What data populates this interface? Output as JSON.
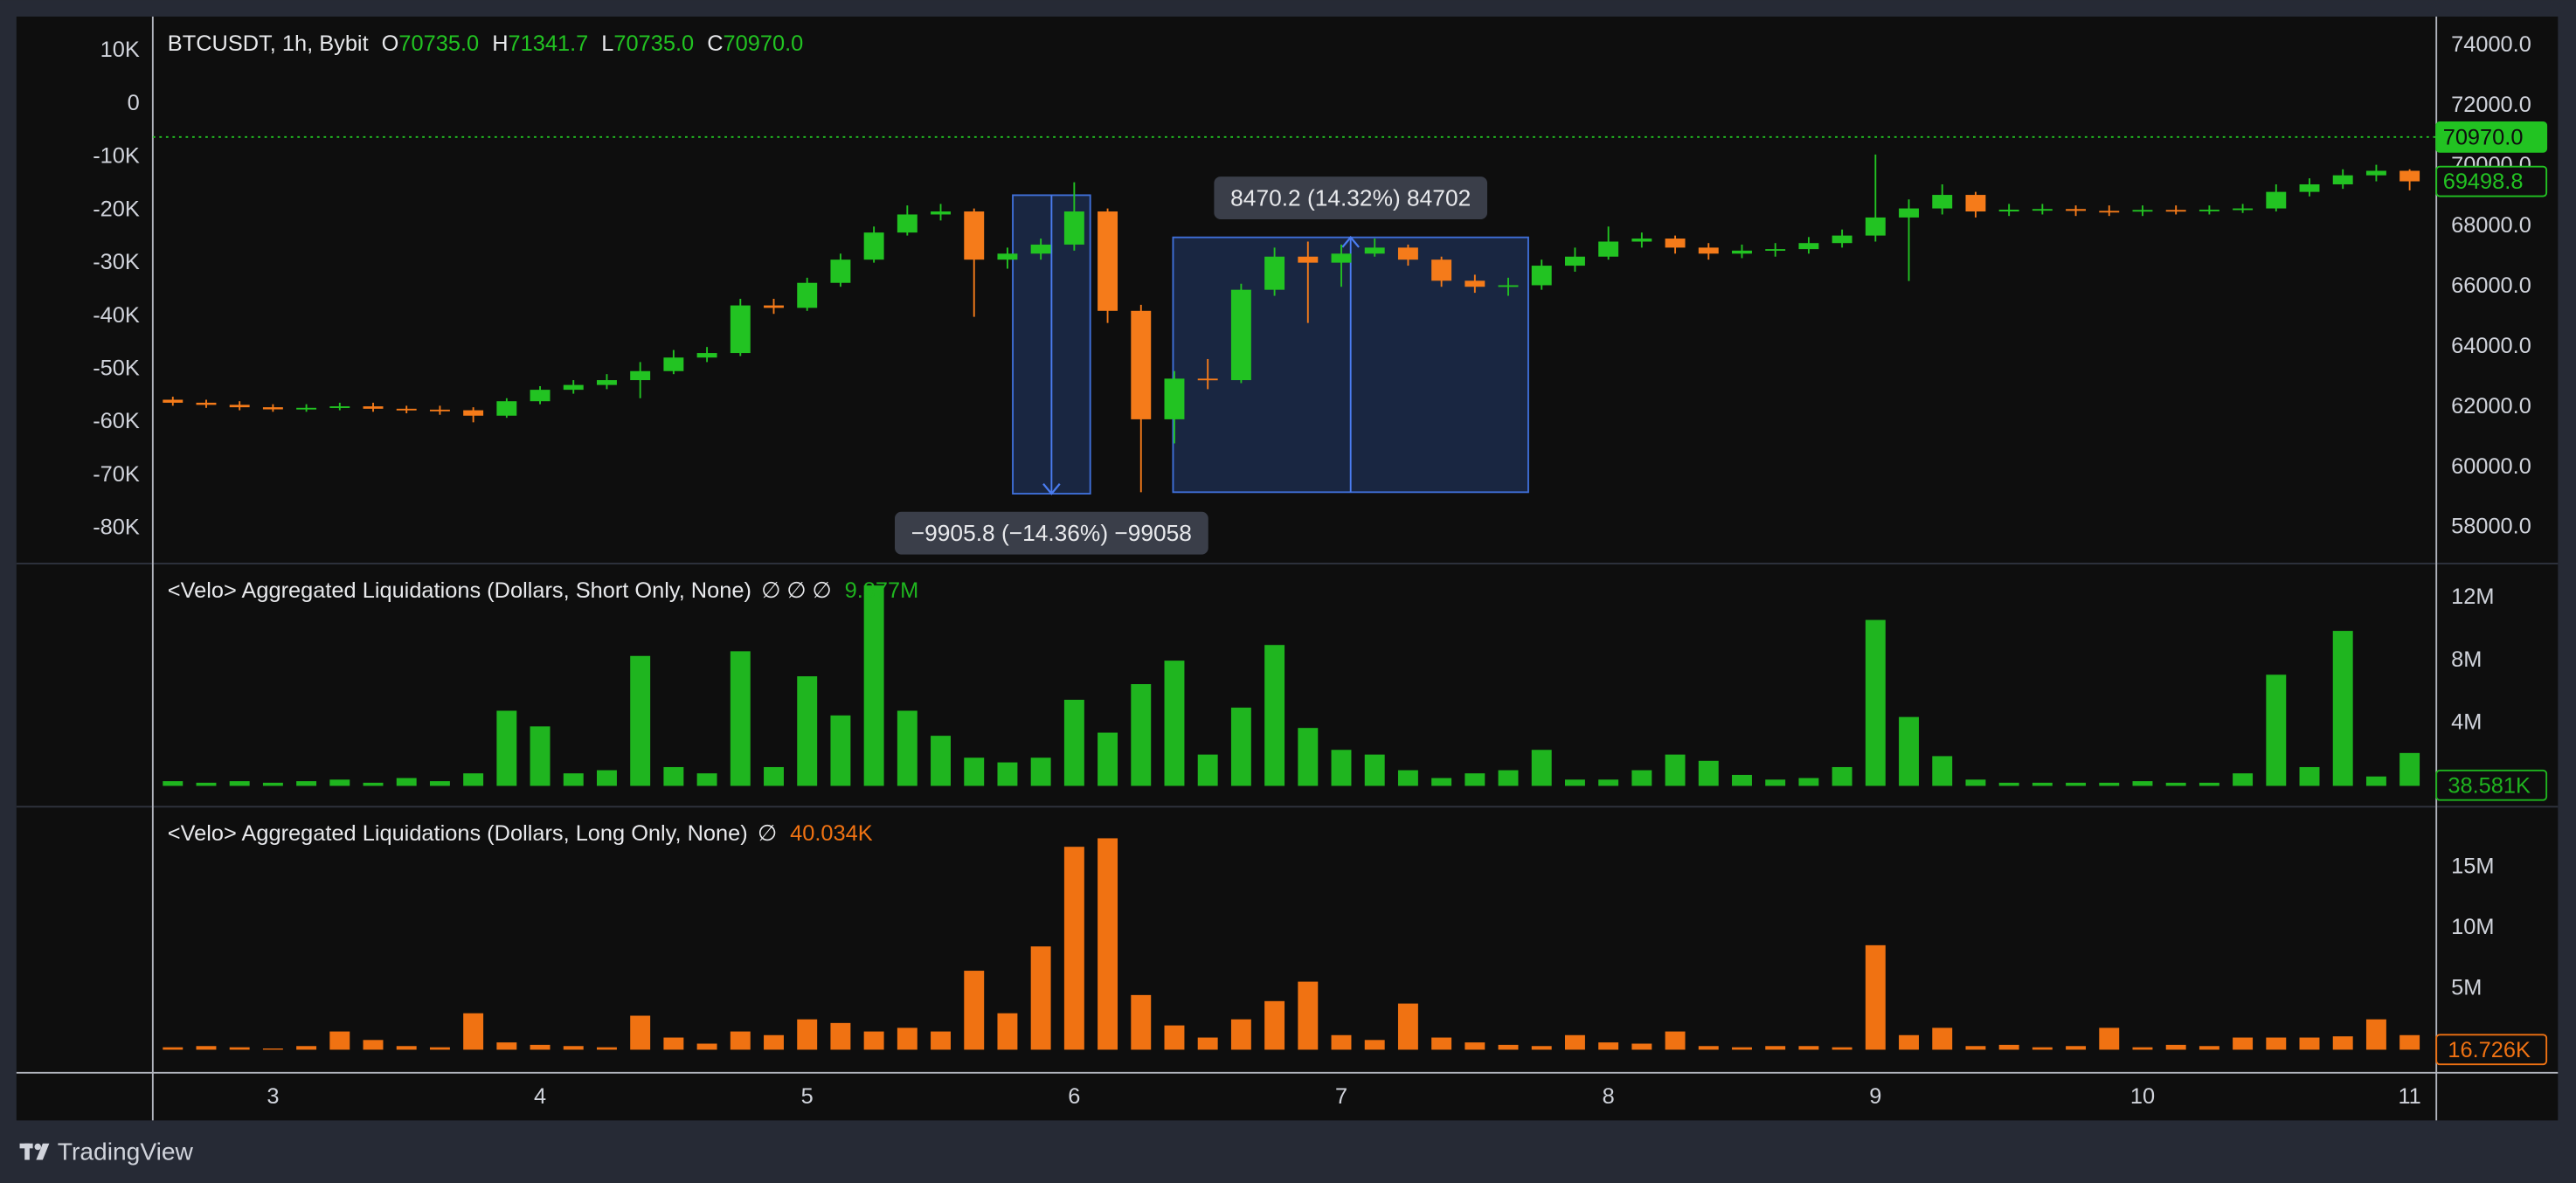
{
  "chart_data": [
    {
      "type": "candlestick",
      "title": "BTCUSDT, 1h, Bybit",
      "header_fields": [
        {
          "key": "O",
          "value": 70735,
          "label": "70735.0"
        },
        {
          "key": "H",
          "value": 71341.7,
          "label": "71341.7"
        },
        {
          "key": "L",
          "value": 70735,
          "label": "70735.0"
        },
        {
          "key": "C",
          "value": 70970,
          "label": "70970.0"
        }
      ],
      "up_color": "#22c322",
      "down_color": "#f57b1a",
      "xlim": [
        2.55,
        11.1
      ],
      "xticks": [
        3,
        4,
        5,
        6,
        7,
        8,
        9,
        10,
        11
      ],
      "ylim": [
        56810,
        74970
      ],
      "yticks": [
        {
          "value": 58000,
          "label": "58000.0"
        },
        {
          "value": 60000,
          "label": "60000.0"
        },
        {
          "value": 62000,
          "label": "62000.0"
        },
        {
          "value": 64000,
          "label": "64000.0"
        },
        {
          "value": 66000,
          "label": "66000.0"
        },
        {
          "value": 68000,
          "label": "68000.0"
        },
        {
          "value": 70000,
          "label": "70000.0"
        },
        {
          "value": 72000,
          "label": "72000.0"
        },
        {
          "value": 74000,
          "label": "74000.0"
        }
      ],
      "y2lim": [
        -86600,
        16500
      ],
      "y2ticks": [
        {
          "value": 10000,
          "label": "10K"
        },
        0,
        {
          "value": -10000,
          "label": "-10K"
        },
        {
          "value": -20000,
          "label": "-20K"
        },
        {
          "value": -30000,
          "label": "-30K"
        },
        {
          "value": -40000,
          "label": "-40K"
        },
        {
          "value": -50000,
          "label": "-50K"
        },
        {
          "value": -60000,
          "label": "-60K"
        },
        {
          "value": -70000,
          "label": "-70K"
        },
        {
          "value": -80000,
          "label": "-80K"
        }
      ],
      "x": [
        2.625,
        2.75,
        2.875,
        3.0,
        3.125,
        3.25,
        3.375,
        3.5,
        3.625,
        3.75,
        3.875,
        4.0,
        4.125,
        4.25,
        4.375,
        4.5,
        4.625,
        4.75,
        4.875,
        5.0,
        5.125,
        5.25,
        5.375,
        5.5,
        5.625,
        5.75,
        5.875,
        6.0,
        6.125,
        6.25,
        6.375,
        6.5,
        6.625,
        6.75,
        6.875,
        7.0,
        7.125,
        7.25,
        7.375,
        7.5,
        7.625,
        7.75,
        7.875,
        8.0,
        8.125,
        8.25,
        8.375,
        8.5,
        8.625,
        8.75,
        8.875,
        9.0,
        9.125,
        9.25,
        9.375,
        9.5,
        9.625,
        9.75,
        9.875,
        10.0,
        10.125,
        10.25,
        10.375,
        10.5,
        10.625,
        10.75,
        10.875,
        11.0
      ],
      "open": [
        62250,
        62150,
        62080,
        62000,
        61930,
        61980,
        62030,
        61950,
        61920,
        61900,
        61720,
        62200,
        62580,
        62740,
        62900,
        63200,
        63650,
        63800,
        65380,
        65300,
        66130,
        66900,
        67800,
        68400,
        68500,
        66900,
        67100,
        67400,
        68500,
        65200,
        61600,
        62950,
        62900,
        65900,
        67000,
        66800,
        67100,
        67300,
        66900,
        66200,
        66000,
        66050,
        66700,
        67000,
        67500,
        67600,
        67300,
        67100,
        67200,
        67250,
        67450,
        67700,
        68300,
        68600,
        69050,
        68500,
        68560,
        68580,
        68520,
        68500,
        68550,
        68530,
        68560,
        68600,
        69150,
        69400,
        69700,
        69850
      ],
      "high": [
        62350,
        62250,
        62200,
        62100,
        62100,
        62150,
        62150,
        62050,
        62050,
        62000,
        62300,
        62700,
        62900,
        63100,
        63500,
        63900,
        64000,
        65600,
        65600,
        66300,
        67100,
        68000,
        68700,
        68750,
        68600,
        67300,
        67600,
        69470,
        68600,
        65400,
        63200,
        63600,
        66100,
        67300,
        67500,
        67400,
        67600,
        67400,
        67000,
        66400,
        66300,
        66900,
        67300,
        68000,
        67800,
        67700,
        67450,
        67400,
        67450,
        67650,
        67900,
        70390,
        68900,
        69400,
        69150,
        68750,
        68750,
        68700,
        68700,
        68700,
        68700,
        68700,
        68750,
        69400,
        69600,
        69900,
        70050,
        69900
      ],
      "low": [
        62050,
        61980,
        61900,
        61850,
        61850,
        61900,
        61850,
        61800,
        61750,
        61500,
        61650,
        62100,
        62450,
        62600,
        62300,
        63100,
        63500,
        63700,
        65100,
        65200,
        66000,
        66800,
        67700,
        68200,
        65000,
        66600,
        66900,
        67200,
        64800,
        59180,
        60800,
        62600,
        62800,
        65700,
        64800,
        66000,
        67000,
        66700,
        66000,
        65800,
        65700,
        65900,
        66500,
        66900,
        67300,
        67100,
        66900,
        66950,
        67000,
        67100,
        67300,
        67500,
        66190,
        68400,
        68300,
        68350,
        68400,
        68350,
        68350,
        68350,
        68400,
        68400,
        68450,
        68500,
        69000,
        69250,
        69500,
        69200
      ],
      "close": [
        62150,
        62080,
        62000,
        61930,
        61980,
        62030,
        61950,
        61920,
        61900,
        61720,
        62200,
        62580,
        62740,
        62900,
        63200,
        63650,
        63800,
        65380,
        65300,
        66130,
        66900,
        67800,
        68400,
        68500,
        66900,
        67100,
        67400,
        68500,
        65200,
        61600,
        62950,
        62900,
        65900,
        67000,
        66800,
        67100,
        67300,
        66900,
        66200,
        66000,
        66050,
        66700,
        67000,
        67500,
        67600,
        67300,
        67100,
        67200,
        67250,
        67450,
        67700,
        68300,
        68600,
        69050,
        68500,
        68560,
        68580,
        68520,
        68500,
        68550,
        68530,
        68560,
        68600,
        69150,
        69400,
        69700,
        69850,
        69500
      ],
      "price_lines": [
        {
          "value": 70970,
          "label": "70970.0",
          "color": "#22c322",
          "style": "filled",
          "line": true
        },
        {
          "value": 69498.8,
          "label": "69498.8",
          "color": "#22c322",
          "style": "outline",
          "line": false
        }
      ],
      "annotations": [
        {
          "text": "−9905.8 (−14.36%) −99058",
          "x": [
            5.77,
            6.06
          ],
          "y": [
            69040,
            59130
          ],
          "direction": "down",
          "label_position": "below"
        },
        {
          "text": "8470.2 (14.32%) 84702",
          "x": [
            6.37,
            7.7
          ],
          "y": [
            67640,
            59180
          ],
          "direction": "up",
          "label_position": "above"
        }
      ]
    },
    {
      "type": "bar",
      "title": "<Velo> Aggregated Liquidations (Dollars, Short Only, None)",
      "legend_value": {
        "value": 9877000,
        "label": "9.877M"
      },
      "legend_symbols": "∅ ∅ ∅",
      "color": "#1fb51f",
      "ylim": [
        -1330000,
        14200000
      ],
      "yticks": [
        {
          "value": 4000000,
          "label": "4M"
        },
        {
          "value": 8000000,
          "label": "8M"
        },
        {
          "value": 12000000,
          "label": "12M"
        }
      ],
      "last_value": {
        "value": 38581,
        "label": "38.581K"
      },
      "x": [
        2.625,
        2.75,
        2.875,
        3.0,
        3.125,
        3.25,
        3.375,
        3.5,
        3.625,
        3.75,
        3.875,
        4.0,
        4.125,
        4.25,
        4.375,
        4.5,
        4.625,
        4.75,
        4.875,
        5.0,
        5.125,
        5.25,
        5.375,
        5.5,
        5.625,
        5.75,
        5.875,
        6.0,
        6.125,
        6.25,
        6.375,
        6.5,
        6.625,
        6.75,
        6.875,
        7.0,
        7.125,
        7.25,
        7.375,
        7.5,
        7.625,
        7.75,
        7.875,
        8.0,
        8.125,
        8.25,
        8.375,
        8.5,
        8.625,
        8.75,
        8.875,
        9.0,
        9.125,
        9.25,
        9.375,
        9.5,
        9.625,
        9.75,
        9.875,
        10.0,
        10.125,
        10.25,
        10.375,
        10.5,
        10.625,
        10.75,
        10.875,
        11.0
      ],
      "values": [
        300000,
        200000,
        300000,
        200000,
        300000,
        400000,
        200000,
        500000,
        300000,
        800000,
        4800000,
        3800000,
        800000,
        1000000,
        8300000,
        1200000,
        800000,
        8600000,
        1200000,
        7000000,
        4500000,
        12800000,
        4800000,
        3200000,
        1800000,
        1500000,
        1800000,
        5500000,
        3400000,
        6500000,
        8000000,
        2000000,
        5000000,
        9000000,
        3700000,
        2300000,
        2000000,
        1000000,
        500000,
        800000,
        1000000,
        2300000,
        400000,
        400000,
        1000000,
        2000000,
        1600000,
        700000,
        400000,
        500000,
        1200000,
        10600000,
        4400000,
        1900000,
        400000,
        200000,
        200000,
        200000,
        200000,
        300000,
        200000,
        200000,
        800000,
        7100000,
        1200000,
        9900000,
        600000,
        2100000
      ]
    },
    {
      "type": "bar",
      "title": "<Velo> Aggregated Liquidations (Dollars, Long Only, None)",
      "legend_value": {
        "value": 40034,
        "label": "40.034K"
      },
      "legend_symbols": "∅",
      "color": "#f07212",
      "ylim": [
        -1900000,
        20000000
      ],
      "yticks": [
        {
          "value": 5000000,
          "label": "5M"
        },
        {
          "value": 10000000,
          "label": "10M"
        },
        {
          "value": 15000000,
          "label": "15M"
        }
      ],
      "last_value": {
        "value": 16726,
        "label": "16.726K"
      },
      "x": [
        2.625,
        2.75,
        2.875,
        3.0,
        3.125,
        3.25,
        3.375,
        3.5,
        3.625,
        3.75,
        3.875,
        4.0,
        4.125,
        4.25,
        4.375,
        4.5,
        4.625,
        4.75,
        4.875,
        5.0,
        5.125,
        5.25,
        5.375,
        5.5,
        5.625,
        5.75,
        5.875,
        6.0,
        6.125,
        6.25,
        6.375,
        6.5,
        6.625,
        6.75,
        6.875,
        7.0,
        7.125,
        7.25,
        7.375,
        7.5,
        7.625,
        7.75,
        7.875,
        8.0,
        8.125,
        8.25,
        8.375,
        8.5,
        8.625,
        8.75,
        8.875,
        9.0,
        9.125,
        9.25,
        9.375,
        9.5,
        9.625,
        9.75,
        9.875,
        10.0,
        10.125,
        10.25,
        10.375,
        10.5,
        10.625,
        10.75,
        10.875,
        11.0
      ],
      "values": [
        200000,
        300000,
        200000,
        100000,
        300000,
        1500000,
        800000,
        300000,
        200000,
        3000000,
        600000,
        400000,
        300000,
        200000,
        2800000,
        1000000,
        500000,
        1500000,
        1200000,
        2500000,
        2200000,
        1500000,
        1800000,
        1500000,
        6500000,
        3000000,
        8500000,
        16700000,
        17400000,
        4500000,
        2000000,
        1000000,
        2500000,
        4000000,
        5600000,
        1200000,
        800000,
        3800000,
        1000000,
        600000,
        400000,
        300000,
        1200000,
        600000,
        500000,
        1500000,
        300000,
        200000,
        300000,
        300000,
        200000,
        8600000,
        1200000,
        1800000,
        300000,
        400000,
        200000,
        300000,
        1800000,
        200000,
        400000,
        300000,
        1000000,
        1000000,
        1000000,
        1100000,
        2500000,
        1200000
      ]
    }
  ],
  "footer": {
    "brand": "TradingView"
  }
}
